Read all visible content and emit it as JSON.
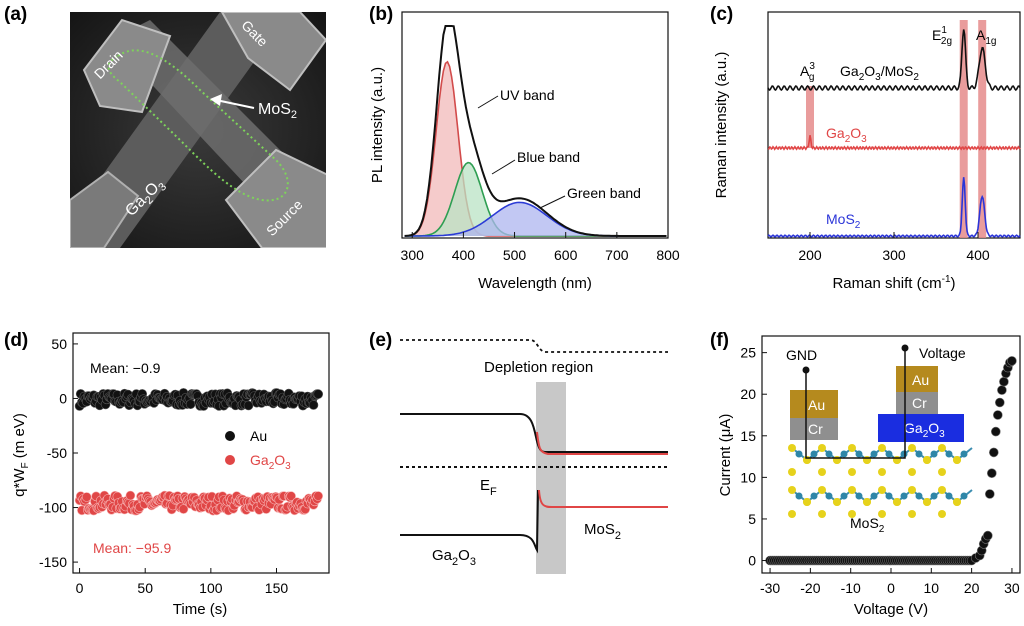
{
  "panel_labels": [
    "(a)",
    "(b)",
    "(c)",
    "(d)",
    "(e)",
    "(f)"
  ],
  "sem": {
    "drain": "Drain",
    "gate": "Gate",
    "source": "Source",
    "channel": "MoS",
    "channel_sub": "2",
    "dielectric": "Ga",
    "dielectric_sub1": "2",
    "dielectric_mid": "O",
    "dielectric_sub2": "3"
  },
  "chart_data": [
    {
      "id": "b",
      "type": "line",
      "xlabel": "Wavelength (nm)",
      "ylabel": "PL intensity (a.u.)",
      "xlim": [
        280,
        800
      ],
      "xticks": [
        "300",
        "400",
        "500",
        "600",
        "700",
        "800"
      ],
      "annotations": [
        "UV band",
        "Blue band",
        "Green band"
      ],
      "series": [
        {
          "name": "UV band",
          "color": "#d24b4b",
          "fill": "#f2b9b9",
          "peak_x": 368,
          "peak_y": 0.83
        },
        {
          "name": "Blue band",
          "color": "#2e9e52",
          "fill": "#b9e3c4",
          "peak_x": 410,
          "peak_y": 0.35
        },
        {
          "name": "Green band",
          "color": "#2b3bd6",
          "fill": "#aeb6ef",
          "peak_x": 510,
          "peak_y": 0.16
        },
        {
          "name": "",
          "color": "#111111",
          "peak_x": 372,
          "peak_y": 1.0
        }
      ]
    },
    {
      "id": "c",
      "type": "line",
      "xlabel": "Raman shift (cm",
      "xlabel_sup": "-1",
      "xlabel_end": ")",
      "ylabel": "Raman intensity (a.u.)",
      "xlim": [
        150,
        450
      ],
      "xticks": [
        "200",
        "300",
        "400"
      ],
      "peak_labels": {
        "a_base": "A",
        "a_sup": "3",
        "a_sub": "g",
        "e_base": "E",
        "e_sup": "1",
        "e_sub": "2g",
        "a1_base": "A",
        "a1_sub": "1g"
      },
      "highlight_bands": [
        200,
        383,
        405
      ],
      "series": [
        {
          "name": "Ga",
          "name_sub1": "2",
          "name_mid": "O",
          "name_sub2": "3",
          "name_tail": "/MoS",
          "name_sub3": "2",
          "color": "#111111"
        },
        {
          "name": "Ga",
          "name_sub1": "2",
          "name_mid": "O",
          "name_sub2": "3",
          "color": "#e04646"
        },
        {
          "name": "MoS",
          "name_sub1": "2",
          "color": "#2b35d8"
        }
      ]
    },
    {
      "id": "d",
      "type": "scatter",
      "xlabel": "Time (s)",
      "ylabel": "q*W",
      "ylabel_sub": "F",
      "ylabel_end": " (m eV)",
      "xlim": [
        -5,
        190
      ],
      "ylim": [
        -160,
        60
      ],
      "xticks": [
        0,
        50,
        100,
        150
      ],
      "yticks": [
        50,
        0,
        -50,
        -100,
        -150
      ],
      "ytick_labels": [
        "50",
        "0",
        "-50",
        "-100",
        "-150"
      ],
      "series": [
        {
          "name": "Au",
          "mean_label": "Mean: −0.9",
          "mean": -0.9,
          "spread": 6,
          "color": "#111111"
        },
        {
          "name": "Ga",
          "name_sub1": "2",
          "name_mid": "O",
          "name_sub2": "3",
          "mean_label": "Mean: −95.9",
          "mean": -95.9,
          "spread": 7,
          "color": "#e04646"
        }
      ]
    },
    {
      "id": "e",
      "type": "diagram",
      "labels": {
        "depletion": "Depletion region",
        "ef": "E",
        "ef_sub": "F",
        "left": "Ga",
        "left_sub1": "2",
        "left_mid": "O",
        "left_sub2": "3",
        "right": "MoS",
        "right_sub": "2"
      }
    },
    {
      "id": "f",
      "type": "scatter",
      "xlabel": "Voltage (V)",
      "ylabel": "Current (μA)",
      "xlim": [
        -32,
        32
      ],
      "ylim": [
        -1.5,
        27
      ],
      "xticks": [
        -30,
        -20,
        -10,
        0,
        10,
        20,
        30
      ],
      "xtick_labels": [
        "-30",
        "-20",
        "-10",
        "0",
        "10",
        "20",
        "30"
      ],
      "yticks": [
        0,
        5,
        10,
        15,
        20,
        25
      ],
      "ytick_labels": [
        "0",
        "5",
        "10",
        "15",
        "20",
        "25"
      ],
      "points_high": [
        [
          21,
          0.3
        ],
        [
          22,
          0.6
        ],
        [
          22.5,
          1.2
        ],
        [
          23,
          2.0
        ],
        [
          23.5,
          2.6
        ],
        [
          24,
          3.0
        ],
        [
          24.5,
          8.0
        ],
        [
          25,
          10.5
        ],
        [
          25.5,
          13.0
        ],
        [
          26,
          15.5
        ],
        [
          26.5,
          17.5
        ],
        [
          27,
          19.0
        ],
        [
          27.5,
          20.5
        ],
        [
          28,
          21.5
        ],
        [
          28.5,
          22.5
        ],
        [
          29,
          23.2
        ],
        [
          29.5,
          23.8
        ],
        [
          30,
          24.0
        ]
      ],
      "inset": {
        "gnd": "GND",
        "voltage": "Voltage",
        "au": "Au",
        "cr": "Cr",
        "die": "Ga",
        "die_sub1": "2",
        "die_mid": "O",
        "die_sub2": "3",
        "mos": "MoS",
        "mos_sub": "2"
      }
    }
  ]
}
